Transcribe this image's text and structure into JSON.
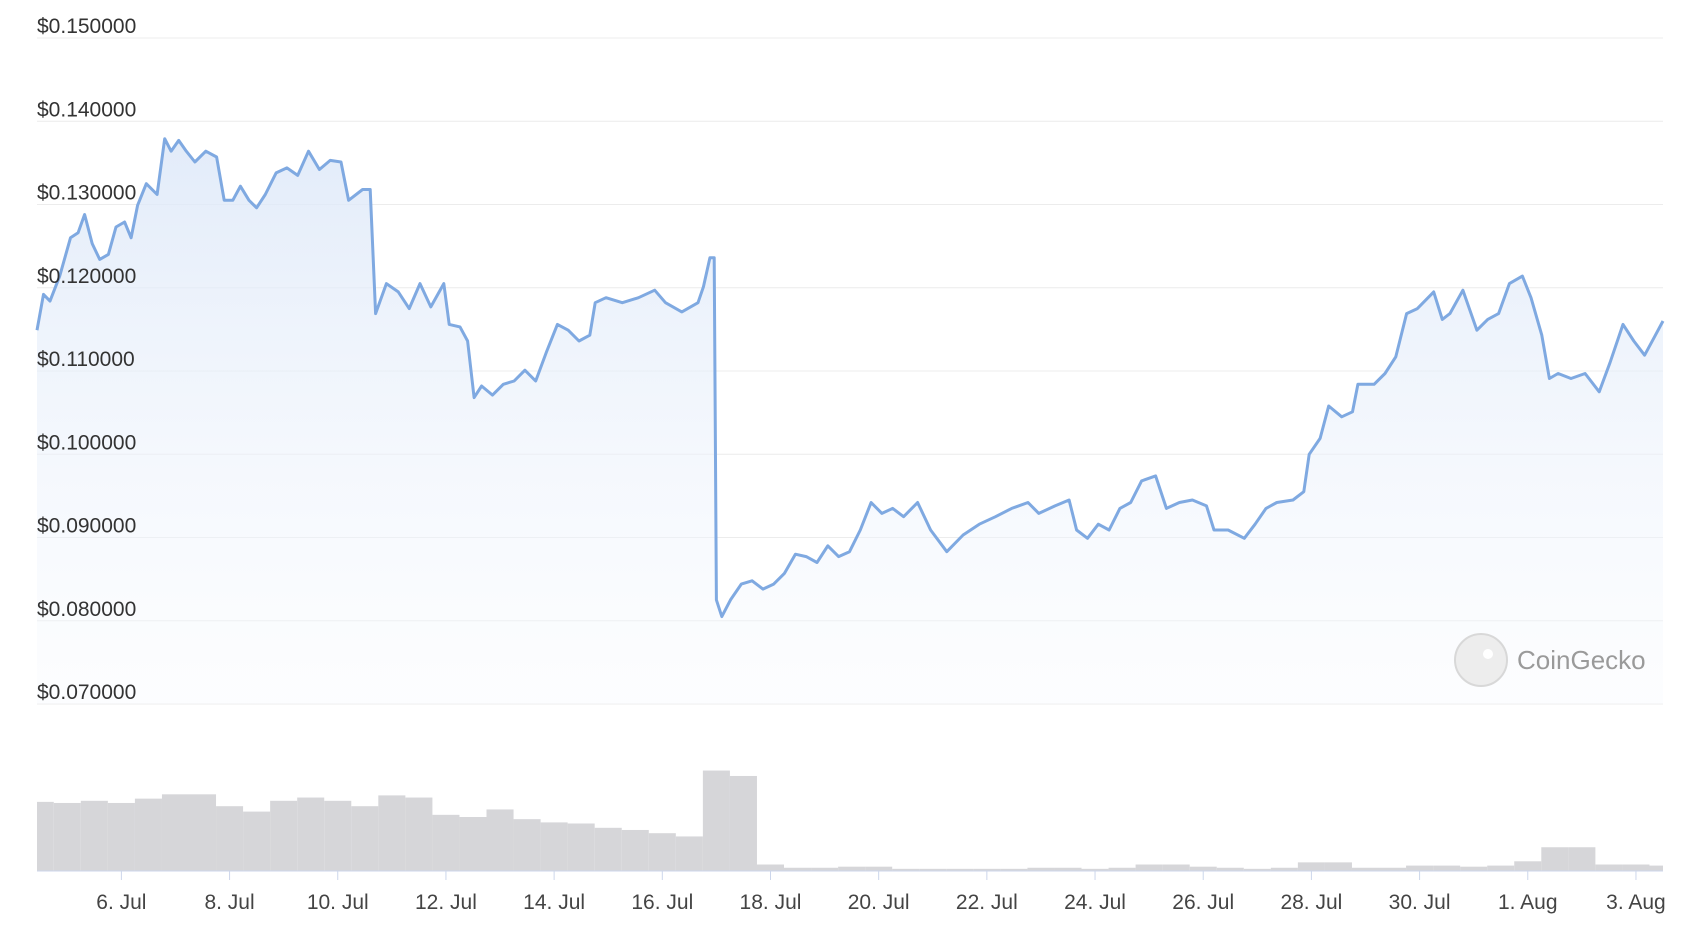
{
  "chart_data": {
    "type": "line",
    "color": "#7fa9e1",
    "grid": true,
    "watermark": "CoinGecko",
    "xlim": [
      4.44,
      34.5
    ],
    "ylim": [
      0.07,
      0.15
    ],
    "yticks": [
      {
        "value": 0.15,
        "label": "$0.150000"
      },
      {
        "value": 0.14,
        "label": "$0.140000"
      },
      {
        "value": 0.13,
        "label": "$0.130000"
      },
      {
        "value": 0.12,
        "label": "$0.120000"
      },
      {
        "value": 0.11,
        "label": "$0.110000"
      },
      {
        "value": 0.1,
        "label": "$0.100000"
      },
      {
        "value": 0.09,
        "label": "$0.090000"
      },
      {
        "value": 0.08,
        "label": "$0.080000"
      },
      {
        "value": 0.07,
        "label": "$0.070000"
      }
    ],
    "xticks": [
      {
        "value": 6,
        "label": "6. Jul"
      },
      {
        "value": 8,
        "label": "8. Jul"
      },
      {
        "value": 10,
        "label": "10. Jul"
      },
      {
        "value": 12,
        "label": "12. Jul"
      },
      {
        "value": 14,
        "label": "14. Jul"
      },
      {
        "value": 16,
        "label": "16. Jul"
      },
      {
        "value": 18,
        "label": "18. Jul"
      },
      {
        "value": 20,
        "label": "20. Jul"
      },
      {
        "value": 22,
        "label": "22. Jul"
      },
      {
        "value": 24,
        "label": "24. Jul"
      },
      {
        "value": 26,
        "label": "26. Jul"
      },
      {
        "value": 28,
        "label": "28. Jul"
      },
      {
        "value": 30,
        "label": "30. Jul"
      },
      {
        "value": 32,
        "label": "1. Aug"
      },
      {
        "value": 34,
        "label": "3. Aug"
      }
    ],
    "x": [
      4.44,
      4.56,
      4.68,
      4.86,
      5.06,
      5.2,
      5.32,
      5.46,
      5.6,
      5.76,
      5.9,
      6.06,
      6.18,
      6.3,
      6.46,
      6.66,
      6.8,
      6.92,
      7.06,
      7.2,
      7.36,
      7.56,
      7.76,
      7.9,
      8.06,
      8.2,
      8.36,
      8.5,
      8.66,
      8.86,
      9.06,
      9.26,
      9.46,
      9.66,
      9.86,
      10.06,
      10.2,
      10.46,
      10.6,
      10.7,
      10.9,
      11.12,
      11.32,
      11.52,
      11.72,
      11.96,
      12.06,
      12.26,
      12.4,
      12.52,
      12.66,
      12.86,
      13.06,
      13.26,
      13.46,
      13.66,
      13.86,
      14.06,
      14.26,
      14.46,
      14.66,
      14.76,
      14.96,
      15.26,
      15.56,
      15.86,
      16.06,
      16.36,
      16.66,
      16.76,
      16.88,
      16.96,
      17.0,
      17.1,
      17.26,
      17.46,
      17.66,
      17.86,
      18.06,
      18.26,
      18.46,
      18.66,
      18.86,
      19.06,
      19.26,
      19.46,
      19.66,
      19.86,
      20.06,
      20.26,
      20.46,
      20.72,
      20.96,
      21.26,
      21.56,
      21.86,
      22.16,
      22.46,
      22.76,
      22.96,
      23.26,
      23.52,
      23.66,
      23.86,
      24.06,
      24.26,
      24.46,
      24.66,
      24.86,
      25.12,
      25.32,
      25.56,
      25.8,
      26.06,
      26.2,
      26.46,
      26.76,
      26.96,
      27.16,
      27.36,
      27.66,
      27.86,
      27.96,
      28.16,
      28.32,
      28.56,
      28.76,
      28.86,
      29.16,
      29.36,
      29.56,
      29.76,
      29.96,
      30.26,
      30.42,
      30.56,
      30.8,
      31.06,
      31.26,
      31.46,
      31.66,
      31.9,
      32.06,
      32.26,
      32.4,
      32.56,
      32.8,
      33.06,
      33.32,
      33.52,
      33.76,
      33.96,
      34.16,
      34.36,
      34.5
    ],
    "values": [
      0.1149,
      0.1192,
      0.1184,
      0.1214,
      0.126,
      0.1266,
      0.1288,
      0.1253,
      0.1234,
      0.124,
      0.1273,
      0.1279,
      0.126,
      0.1299,
      0.1325,
      0.1312,
      0.1379,
      0.1364,
      0.1377,
      0.1364,
      0.1351,
      0.1364,
      0.1357,
      0.1305,
      0.1305,
      0.1322,
      0.1305,
      0.1296,
      0.1312,
      0.1338,
      0.1344,
      0.1335,
      0.1364,
      0.1342,
      0.1353,
      0.1351,
      0.1305,
      0.1318,
      0.1318,
      0.1169,
      0.1205,
      0.1195,
      0.1175,
      0.1205,
      0.1177,
      0.1205,
      0.1156,
      0.1153,
      0.1136,
      0.1068,
      0.1082,
      0.1071,
      0.1084,
      0.1088,
      0.1101,
      0.1088,
      0.1123,
      0.1156,
      0.1149,
      0.1136,
      0.1143,
      0.1182,
      0.1188,
      0.1182,
      0.1188,
      0.1197,
      0.1182,
      0.1171,
      0.1182,
      0.1201,
      0.1236,
      0.1236,
      0.0825,
      0.0805,
      0.0825,
      0.0844,
      0.0848,
      0.0838,
      0.0844,
      0.0857,
      0.088,
      0.0877,
      0.087,
      0.089,
      0.0877,
      0.0883,
      0.0909,
      0.0942,
      0.0929,
      0.0935,
      0.0925,
      0.0942,
      0.0909,
      0.0883,
      0.0903,
      0.0916,
      0.0925,
      0.0935,
      0.0942,
      0.0929,
      0.0938,
      0.0945,
      0.0909,
      0.0899,
      0.0916,
      0.0909,
      0.0935,
      0.0942,
      0.0968,
      0.0974,
      0.0935,
      0.0942,
      0.0945,
      0.0938,
      0.0909,
      0.0909,
      0.0899,
      0.0916,
      0.0935,
      0.0942,
      0.0945,
      0.0955,
      0.1,
      0.1019,
      0.1058,
      0.1045,
      0.1051,
      0.1084,
      0.1084,
      0.1097,
      0.1117,
      0.1169,
      0.1175,
      0.1195,
      0.1162,
      0.1169,
      0.1197,
      0.1149,
      0.1162,
      0.1169,
      0.1205,
      0.1214,
      0.1188,
      0.1143,
      0.1091,
      0.1097,
      0.1091,
      0.1097,
      0.1075,
      0.111,
      0.1156,
      0.1136,
      0.1119,
      0.1143,
      0.116
    ],
    "volume": {
      "color": "#d6d6d9",
      "y2lim": [
        0,
        100
      ],
      "x": [
        4.5,
        5.0,
        5.5,
        6.0,
        6.5,
        7.0,
        7.5,
        8.0,
        8.5,
        9.0,
        9.5,
        10.0,
        10.5,
        11.0,
        11.5,
        12.0,
        12.5,
        13.0,
        13.5,
        14.0,
        14.5,
        15.0,
        15.5,
        16.0,
        16.5,
        17.0,
        17.5,
        18.0,
        18.5,
        19.0,
        19.5,
        20.0,
        20.5,
        21.0,
        21.5,
        22.0,
        22.5,
        23.0,
        23.5,
        24.0,
        24.5,
        25.0,
        25.5,
        26.0,
        26.5,
        27.0,
        27.5,
        28.0,
        28.5,
        29.0,
        29.5,
        30.0,
        30.5,
        31.0,
        31.5,
        32.0,
        32.5,
        33.0,
        33.5,
        34.0,
        34.5
      ],
      "values": [
        64,
        63,
        65,
        63,
        67,
        71,
        71,
        60,
        55,
        65,
        68,
        65,
        60,
        70,
        68,
        52,
        50,
        57,
        48,
        45,
        44,
        40,
        38,
        35,
        32,
        93,
        88,
        6,
        3,
        3,
        4,
        4,
        2,
        2,
        2,
        2,
        2,
        3,
        3,
        2,
        3,
        6,
        6,
        4,
        3,
        2,
        3,
        8,
        8,
        3,
        3,
        5,
        5,
        4,
        5,
        9,
        22,
        22,
        6,
        6,
        5
      ]
    }
  }
}
